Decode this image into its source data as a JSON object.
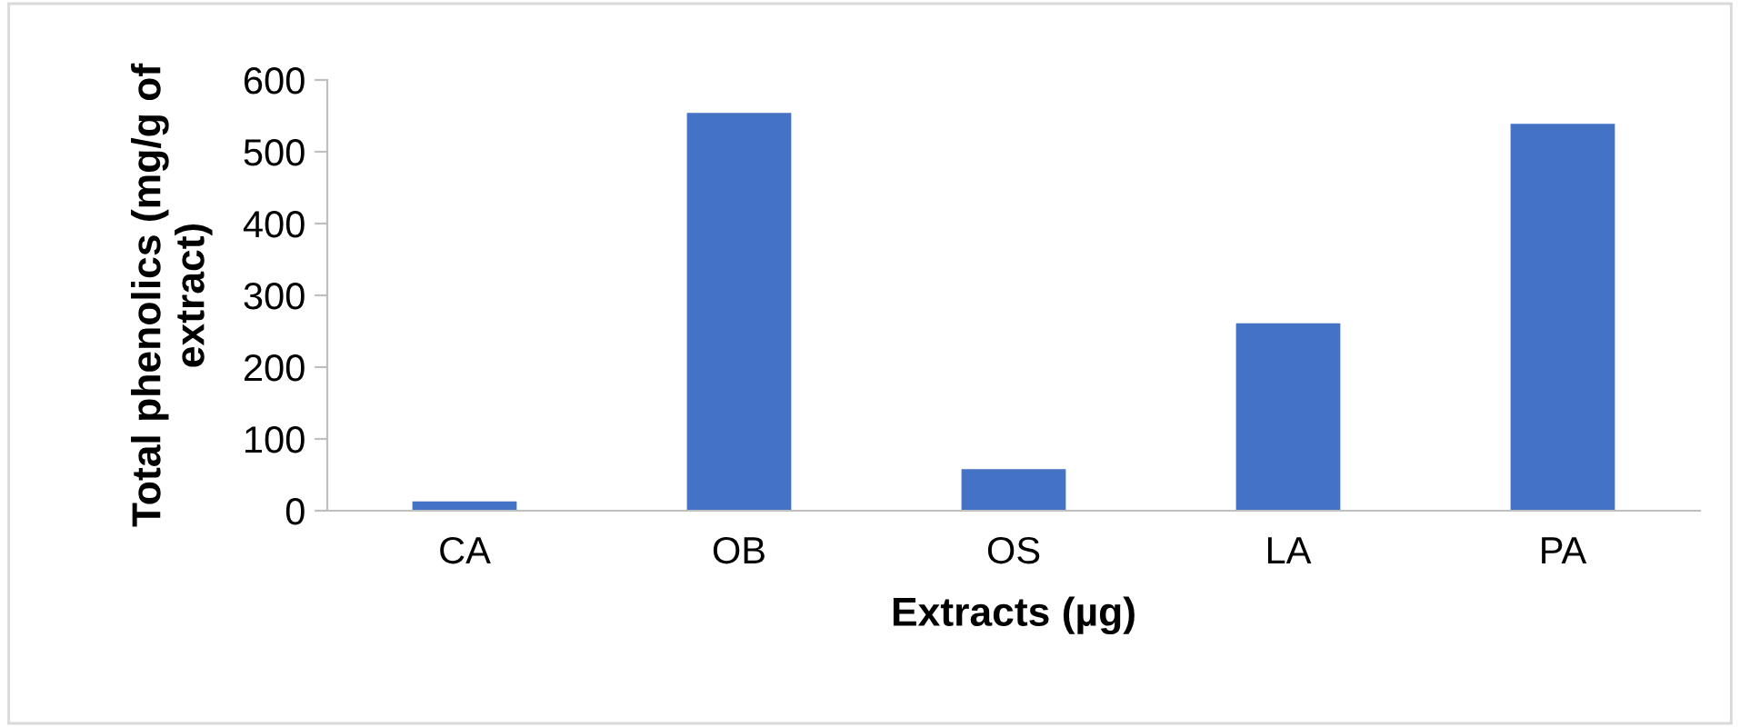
{
  "chart_data": {
    "type": "bar",
    "xlabel": "Extracts (µg)",
    "ylabel": "Total phenolics (mg/g of extract)",
    "categories": [
      "CA",
      "OB",
      "OS",
      "LA",
      "PA"
    ],
    "values": [
      13,
      554,
      58,
      261,
      539
    ],
    "color": "#4472c4",
    "ylim": [
      0,
      600
    ],
    "yticks": [
      0,
      100,
      200,
      300,
      400,
      500,
      600
    ],
    "grid": false
  }
}
